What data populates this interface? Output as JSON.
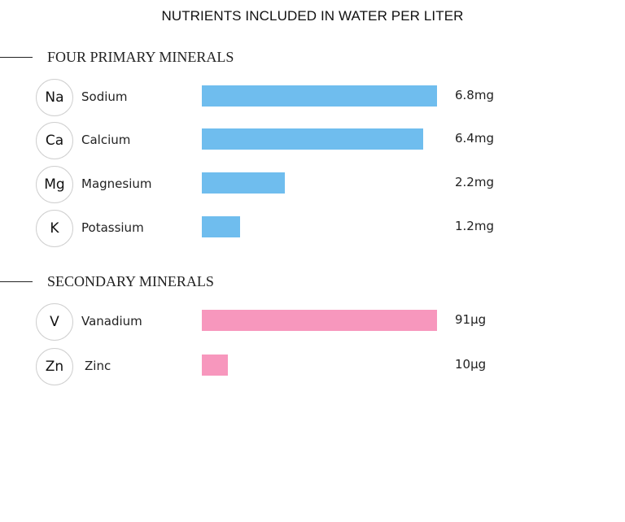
{
  "chart_data": {
    "type": "bar",
    "orientation": "horizontal",
    "title": "NUTRIENTS INCLUDED IN WATER PER LITER",
    "groups": [
      {
        "name": "FOUR PRIMARY MINERALS",
        "color": "#6fbdee",
        "unit": "mg",
        "max": 6.8,
        "items": [
          {
            "symbol": "Na",
            "name": "Sodium",
            "value": 6.8,
            "label": "6.8mg"
          },
          {
            "symbol": "Ca",
            "name": "Calcium",
            "value": 6.4,
            "label": "6.4mg"
          },
          {
            "symbol": "Mg",
            "name": "Magnesium",
            "value": 2.2,
            "label": "2.2mg"
          },
          {
            "symbol": "K",
            "name": "Potassium",
            "value": 1.2,
            "label": "1.2mg"
          }
        ]
      },
      {
        "name": "SECONDARY MINERALS",
        "color": "#f797bd",
        "unit": "μg",
        "max": 91,
        "items": [
          {
            "symbol": "V",
            "name": "Vanadium",
            "value": 91,
            "label": "91μg"
          },
          {
            "symbol": "Zn",
            "name": "Zinc",
            "value": 10,
            "label": "10μg"
          }
        ]
      }
    ]
  }
}
